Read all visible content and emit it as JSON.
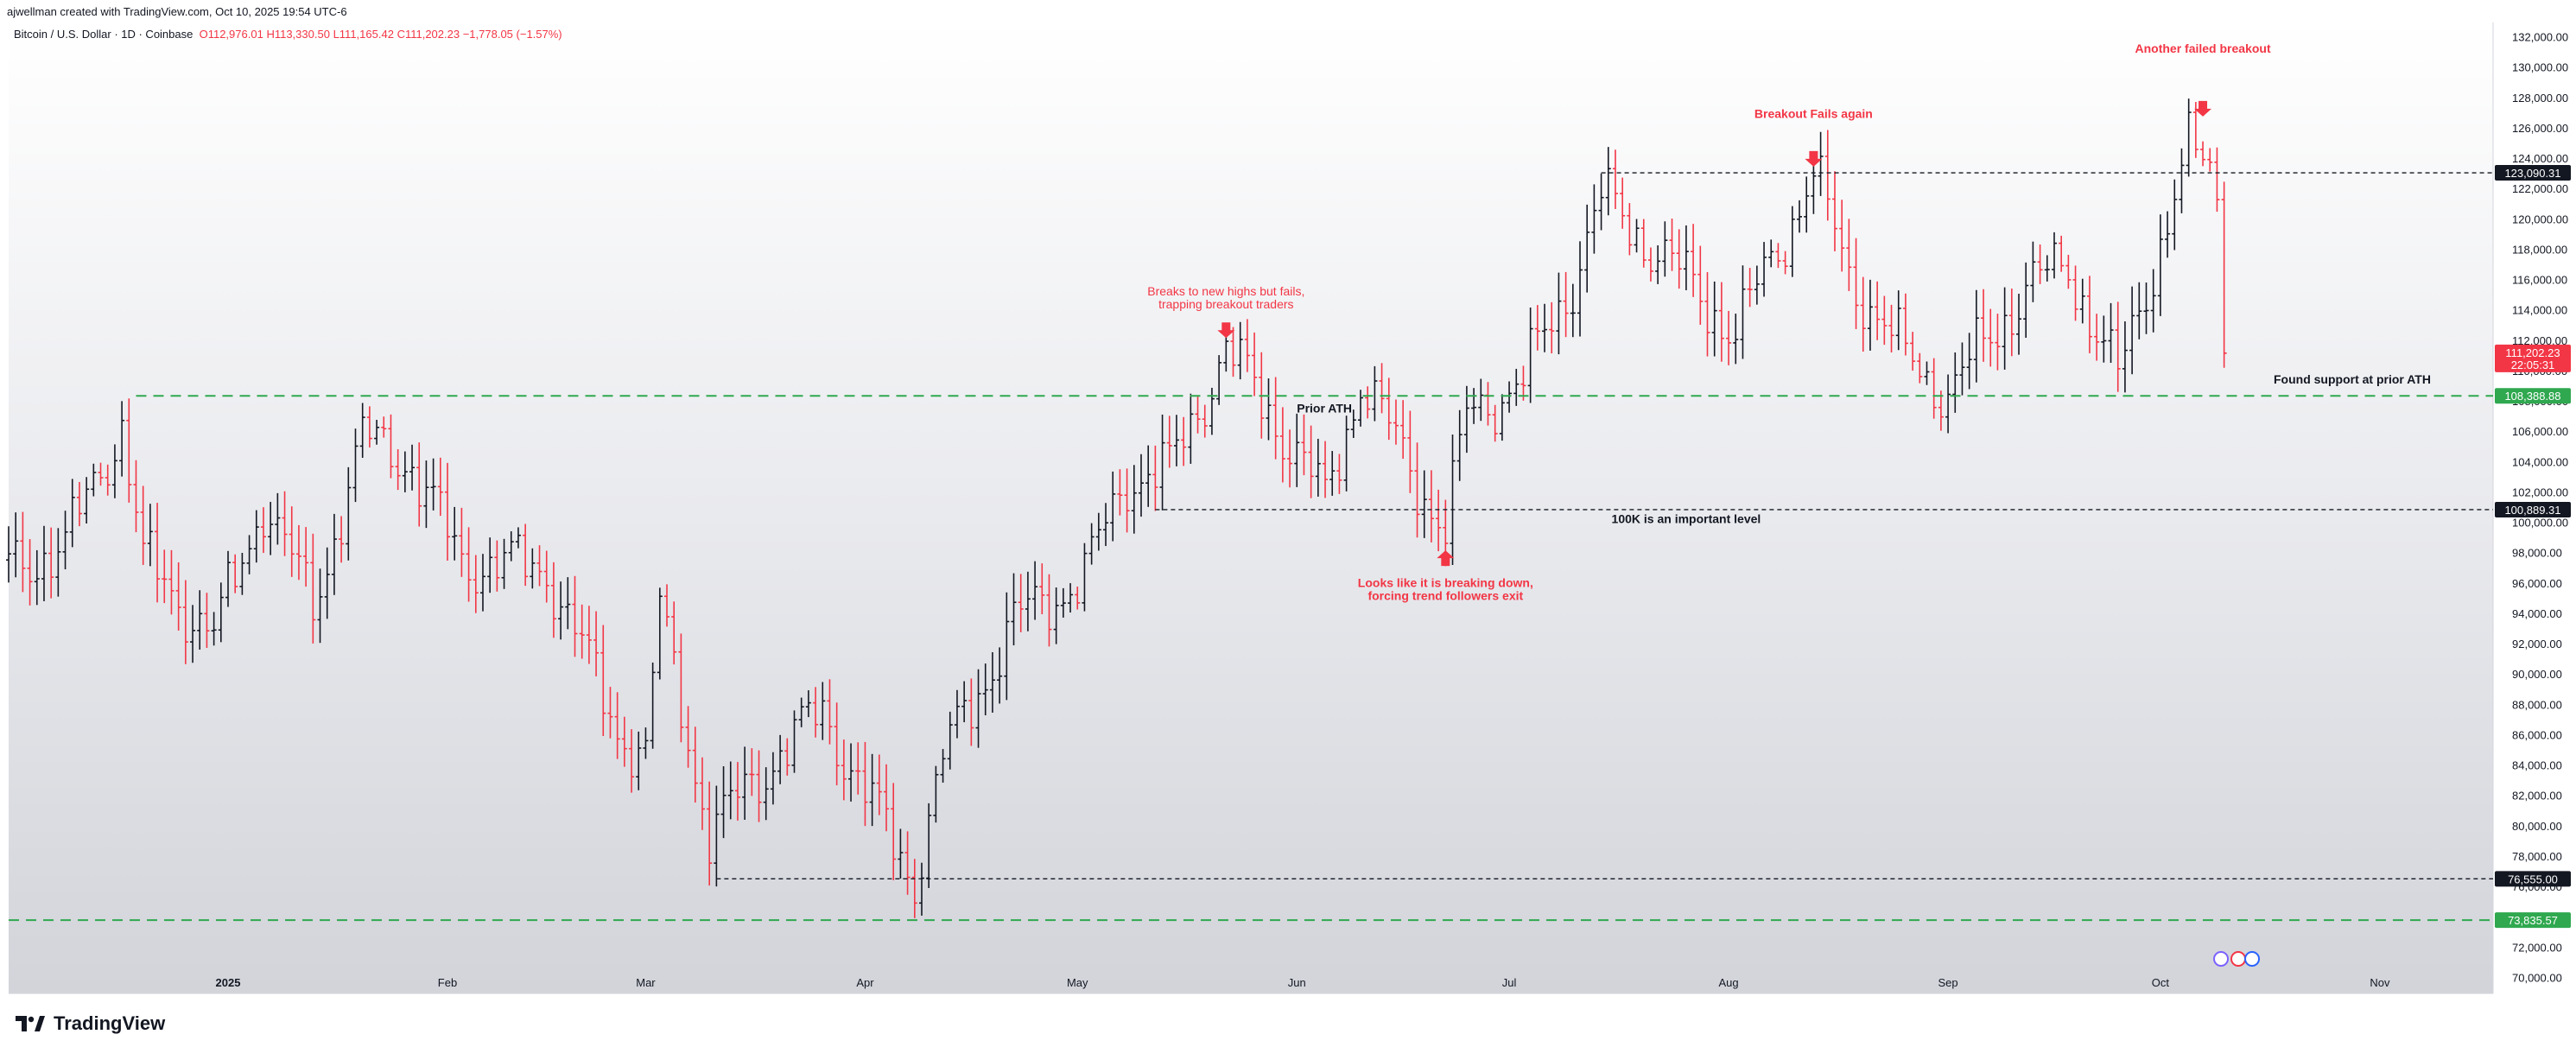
{
  "header": {
    "created_by": "ajwellman created with TradingView.com, Oct 10, 2025 19:54 UTC-6",
    "symbol": "Bitcoin / U.S. Dollar · 1D · Coinbase",
    "open": "O112,976.01",
    "high": "H113,330.50",
    "low": "L111,165.42",
    "close": "C111,202.23",
    "change": "−1,778.05 (−1.57%)"
  },
  "brand": {
    "name": "TradingView"
  },
  "colors": {
    "up": "#131722",
    "down": "#f23645",
    "green_line": "#2fa84f",
    "dark_line": "#131722",
    "annotation": "#f23645"
  },
  "chart_data": {
    "type": "candlestick",
    "title": "Bitcoin / U.S. Dollar · 1D · Coinbase",
    "ylim": [
      69000,
      133000
    ],
    "y_ticks": [
      70000,
      72000,
      74000,
      76000,
      78000,
      80000,
      82000,
      84000,
      86000,
      88000,
      90000,
      92000,
      94000,
      96000,
      98000,
      100000,
      102000,
      104000,
      106000,
      108000,
      110000,
      112000,
      114000,
      116000,
      118000,
      120000,
      122000,
      124000,
      126000,
      128000,
      130000,
      132000
    ],
    "y_tick_labels": [
      "70,000.00",
      "72,000.00",
      "74,000.00",
      "76,000.00",
      "78,000.00",
      "80,000.00",
      "82,000.00",
      "84,000.00",
      "86,000.00",
      "88,000.00",
      "90,000.00",
      "92,000.00",
      "94,000.00",
      "96,000.00",
      "98,000.00",
      "100,000.00",
      "102,000.00",
      "104,000.00",
      "106,000.00",
      "108,000.00",
      "110,000.00",
      "112,000.00",
      "114,000.00",
      "116,000.00",
      "118,000.00",
      "120,000.00",
      "122,000.00",
      "124,000.00",
      "126,000.00",
      "128,000.00",
      "130,000.00",
      "132,000.00"
    ],
    "x_range": [
      "2024-12-01",
      "2025-11-17"
    ],
    "x_ticks": [
      {
        "date": "2025-01-01",
        "label": "2025"
      },
      {
        "date": "2025-02-01",
        "label": "Feb"
      },
      {
        "date": "2025-03-01",
        "label": "Mar"
      },
      {
        "date": "2025-04-01",
        "label": "Apr"
      },
      {
        "date": "2025-05-01",
        "label": "May"
      },
      {
        "date": "2025-06-01",
        "label": "Jun"
      },
      {
        "date": "2025-07-01",
        "label": "Jul"
      },
      {
        "date": "2025-08-01",
        "label": "Aug"
      },
      {
        "date": "2025-09-01",
        "label": "Sep"
      },
      {
        "date": "2025-10-01",
        "label": "Oct"
      },
      {
        "date": "2025-11-01",
        "label": "Nov"
      }
    ],
    "key_points": [
      {
        "date": "2024-12-01",
        "close": 97000
      },
      {
        "date": "2024-12-09",
        "close": 98500
      },
      {
        "date": "2024-12-17",
        "close": 106500
      },
      {
        "date": "2024-12-20",
        "close": 97500
      },
      {
        "date": "2024-12-30",
        "close": 92500
      },
      {
        "date": "2025-01-06",
        "close": 101500
      },
      {
        "date": "2025-01-13",
        "close": 94500
      },
      {
        "date": "2025-01-20",
        "close": 105500
      },
      {
        "date": "2025-01-26",
        "close": 104500
      },
      {
        "date": "2025-02-03",
        "close": 97500
      },
      {
        "date": "2025-02-15",
        "close": 97000
      },
      {
        "date": "2025-02-25",
        "close": 86500
      },
      {
        "date": "2025-03-01",
        "close": 84500
      },
      {
        "date": "2025-03-03",
        "close": 94500
      },
      {
        "date": "2025-03-10",
        "close": 79500
      },
      {
        "date": "2025-03-20",
        "close": 85000
      },
      {
        "date": "2025-03-26",
        "close": 87500
      },
      {
        "date": "2025-04-06",
        "close": 78000
      },
      {
        "date": "2025-04-08",
        "close": 76500
      },
      {
        "date": "2025-04-12",
        "close": 84500
      },
      {
        "date": "2025-04-22",
        "close": 93500
      },
      {
        "date": "2025-05-02",
        "close": 96500
      },
      {
        "date": "2025-05-08",
        "close": 103000
      },
      {
        "date": "2025-05-14",
        "close": 103500
      },
      {
        "date": "2025-05-22",
        "close": 111500
      },
      {
        "date": "2025-05-28",
        "close": 107500
      },
      {
        "date": "2025-06-05",
        "close": 101500
      },
      {
        "date": "2025-06-10",
        "close": 109500
      },
      {
        "date": "2025-06-22",
        "close": 99500
      },
      {
        "date": "2025-06-25",
        "close": 107000
      },
      {
        "date": "2025-07-03",
        "close": 109500
      },
      {
        "date": "2025-07-10",
        "close": 116000
      },
      {
        "date": "2025-07-14",
        "close": 121500
      },
      {
        "date": "2025-07-25",
        "close": 116500
      },
      {
        "date": "2025-08-02",
        "close": 112500
      },
      {
        "date": "2025-08-13",
        "close": 123000
      },
      {
        "date": "2025-08-18",
        "close": 116500
      },
      {
        "date": "2025-08-25",
        "close": 111500
      },
      {
        "date": "2025-09-01",
        "close": 108500
      },
      {
        "date": "2025-09-12",
        "close": 115500
      },
      {
        "date": "2025-09-18",
        "close": 117000
      },
      {
        "date": "2025-09-25",
        "close": 109500
      },
      {
        "date": "2025-10-01",
        "close": 118500
      },
      {
        "date": "2025-10-05",
        "close": 124500
      },
      {
        "date": "2025-10-08",
        "close": 123500
      },
      {
        "date": "2025-10-09",
        "close": 121500
      },
      {
        "date": "2025-10-10",
        "close": 111202.23
      }
    ],
    "price_labels": [
      {
        "value": 123090.31,
        "label": "123,090.31",
        "kind": "dark"
      },
      {
        "value": 111202.23,
        "label": "111,202.23",
        "sub": "22:05:31",
        "kind": "red"
      },
      {
        "value": 108388.88,
        "label": "108,388.88",
        "kind": "green"
      },
      {
        "value": 100889.31,
        "label": "100,889.31",
        "kind": "dark"
      },
      {
        "value": 76555.0,
        "label": "76,555.00",
        "kind": "dark"
      },
      {
        "value": 73835.57,
        "label": "73,835.57",
        "kind": "green"
      }
    ],
    "horizontal_lines": [
      {
        "value": 108388.88,
        "from": "2024-12-19",
        "style": "green-dashed"
      },
      {
        "value": 73835.57,
        "from": "2024-12-01",
        "style": "green-dashed"
      },
      {
        "value": 123090.31,
        "from": "2025-07-14",
        "style": "dark-dashed"
      },
      {
        "value": 100889.31,
        "from": "2025-05-12",
        "style": "dark-dashed"
      },
      {
        "value": 76555.0,
        "from": "2025-03-11",
        "style": "dark-dashed"
      }
    ],
    "annotations": [
      {
        "text": "Breaks to new highs but fails,\ntrapping breakout traders",
        "date": "2025-05-22",
        "value": 115000,
        "color": "red",
        "bold": false,
        "arrow": "down",
        "arrow_value": 112200
      },
      {
        "text": "Prior ATH",
        "date": "2025-06-01",
        "value": 107300,
        "color": "dark",
        "bold": true
      },
      {
        "text": "Breakout Fails again",
        "date": "2025-08-13",
        "value": 126700,
        "color": "red",
        "bold": true,
        "arrow": "down",
        "arrow_value": 123500
      },
      {
        "text": "Another failed breakout",
        "date": "2025-10-07",
        "value": 131000,
        "color": "red",
        "bold": true,
        "arrow": "down",
        "arrow_value": 126800
      },
      {
        "text": "Found support at prior ATH",
        "date": "2025-10-17",
        "value": 109200,
        "color": "dark",
        "bold": true
      },
      {
        "text": "100K is an important level",
        "date": "2025-07-26",
        "value": 100000,
        "color": "dark",
        "bold": true
      },
      {
        "text": "Looks like it is breaking down,\nforcing trend followers exit",
        "date": "2025-06-22",
        "value": 95800,
        "color": "red",
        "bold": true,
        "arrow": "up",
        "arrow_value": 98200
      }
    ]
  }
}
